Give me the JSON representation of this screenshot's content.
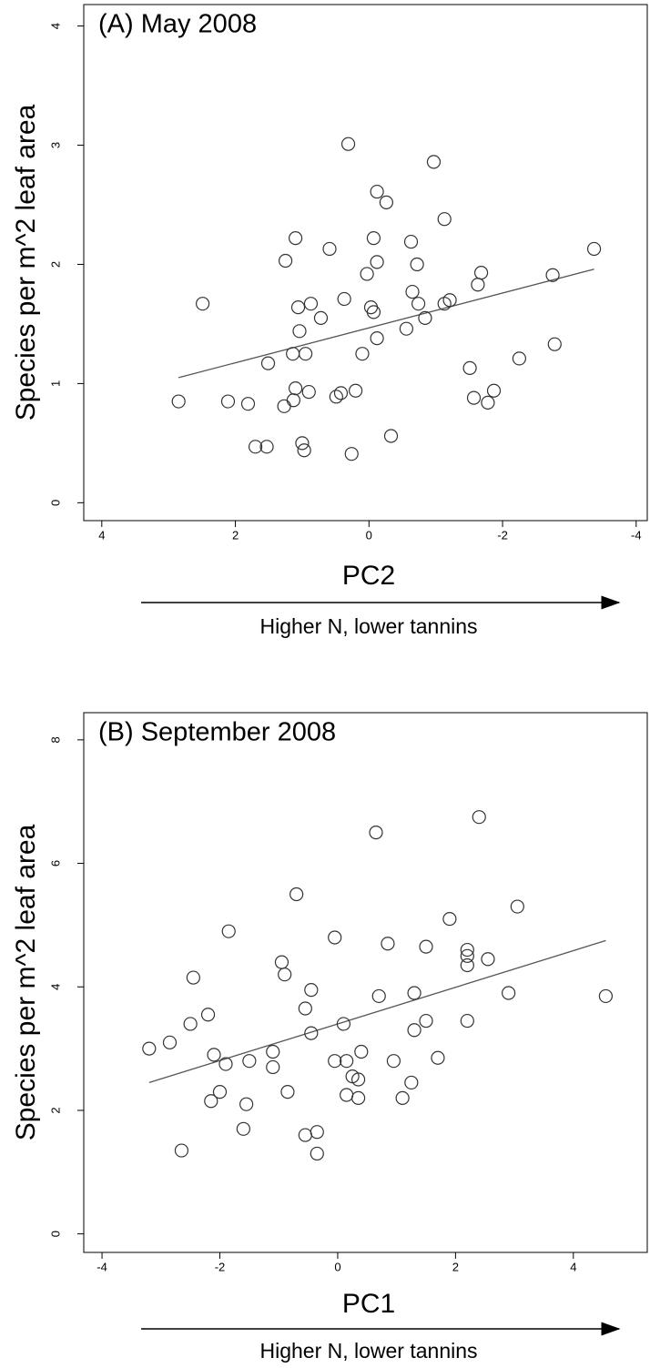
{
  "chart_data": [
    {
      "type": "scatter",
      "title": "(A) May 2008",
      "x_label": "PC2",
      "y_label": "Species per m^2 leaf area",
      "annotation": "Higher N, lower tannins",
      "x": [
        2.49,
        2.85,
        2.11,
        1.81,
        1.7,
        1.53,
        1.51,
        1.27,
        1.25,
        1.14,
        1.13,
        1.1,
        1.1,
        1.06,
        1.04,
        1.0,
        0.97,
        0.95,
        0.9,
        0.87,
        0.72,
        0.59,
        0.49,
        0.42,
        0.37,
        0.31,
        0.26,
        0.2,
        0.1,
        0.03,
        -0.03,
        -0.07,
        -0.07,
        -0.12,
        -0.12,
        -0.12,
        -0.26,
        -0.33,
        -0.56,
        -0.63,
        -0.65,
        -0.72,
        -0.74,
        -0.84,
        -0.97,
        -1.13,
        -1.13,
        -1.21,
        -1.63,
        -1.68,
        -1.51,
        -1.57,
        -1.78,
        -1.87,
        -2.25,
        -2.75,
        -2.78,
        -3.37
      ],
      "values": [
        1.67,
        0.85,
        0.85,
        0.83,
        0.47,
        0.47,
        1.17,
        0.81,
        2.03,
        1.25,
        0.86,
        2.22,
        0.96,
        1.64,
        1.44,
        0.5,
        0.44,
        1.25,
        0.93,
        1.67,
        1.55,
        2.13,
        0.89,
        0.92,
        1.71,
        3.01,
        0.41,
        0.94,
        1.25,
        1.92,
        1.64,
        2.22,
        1.6,
        2.61,
        2.02,
        1.38,
        2.52,
        0.56,
        1.46,
        2.19,
        1.77,
        2.0,
        1.67,
        1.55,
        2.86,
        2.38,
        1.67,
        1.7,
        1.83,
        1.93,
        1.13,
        0.88,
        0.84,
        0.94,
        1.21,
        1.91,
        1.33,
        2.13
      ],
      "trend": {
        "x": [
          2.85,
          -3.37
        ],
        "values": [
          1.05,
          1.96
        ]
      },
      "xlim": [
        4.27,
        -4.18
      ],
      "ylim": [
        -0.15,
        4.18
      ],
      "xticks": [
        4,
        2,
        0,
        -2,
        -4
      ],
      "yticks": [
        0,
        1,
        2,
        3,
        4
      ]
    },
    {
      "type": "scatter",
      "title": "(B) September 2008",
      "x_label": "PC1",
      "y_label": "Species per m^2 leaf area",
      "annotation": "Higher N, lower tannins",
      "x": [
        -3.2,
        -2.85,
        -2.65,
        -2.5,
        -2.45,
        -2.2,
        -2.15,
        -2.1,
        -2.0,
        -1.9,
        -1.85,
        -1.6,
        -1.55,
        -1.5,
        -1.1,
        -1.1,
        -0.95,
        -0.9,
        -0.85,
        -0.7,
        -0.55,
        -0.55,
        -0.45,
        -0.45,
        -0.35,
        -0.35,
        -0.05,
        -0.05,
        0.1,
        0.15,
        0.15,
        0.25,
        0.35,
        0.35,
        0.4,
        0.65,
        0.7,
        0.85,
        0.95,
        1.1,
        1.25,
        1.3,
        1.3,
        1.5,
        1.5,
        1.7,
        1.9,
        2.2,
        2.2,
        2.2,
        2.2,
        2.4,
        2.55,
        2.9,
        3.05,
        4.55
      ],
      "values": [
        3.0,
        3.1,
        1.35,
        3.4,
        4.15,
        3.55,
        2.15,
        2.9,
        2.3,
        2.75,
        4.9,
        1.7,
        2.1,
        2.8,
        2.95,
        2.7,
        4.4,
        4.2,
        2.3,
        5.5,
        3.65,
        1.6,
        3.95,
        3.25,
        1.3,
        1.65,
        2.8,
        4.8,
        3.4,
        2.8,
        2.25,
        2.55,
        2.2,
        2.5,
        2.95,
        6.5,
        3.85,
        4.7,
        2.8,
        2.2,
        2.45,
        3.3,
        3.9,
        3.45,
        4.65,
        2.85,
        5.1,
        4.6,
        4.5,
        4.35,
        3.45,
        6.75,
        4.45,
        3.9,
        5.3,
        3.85
      ],
      "trend": {
        "x": [
          -3.2,
          4.55
        ],
        "values": [
          2.45,
          4.75
        ]
      },
      "xlim": [
        -4.31,
        5.27
      ],
      "ylim": [
        -0.3,
        8.44
      ],
      "xticks": [
        -4,
        -2,
        0,
        2,
        4
      ],
      "yticks": [
        0,
        2,
        4,
        6,
        8
      ]
    }
  ]
}
